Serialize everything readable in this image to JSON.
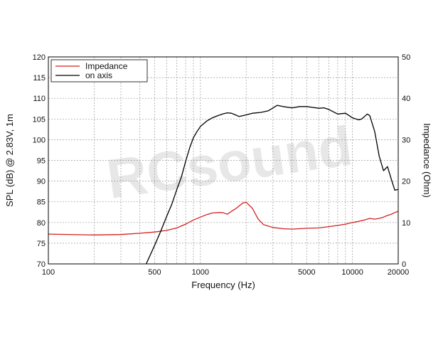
{
  "chart_data": {
    "type": "line",
    "xlabel": "Frequency (Hz)",
    "ylabel": "SPL (dB) @ 2.83V, 1m",
    "y2label": "Impedance (Ohm)",
    "x_scale": "log",
    "xlim": [
      100,
      20000
    ],
    "ylim": [
      70,
      120
    ],
    "y2lim": [
      0,
      50
    ],
    "grid": true,
    "legend_position": "top-left",
    "x_ticks": [
      {
        "value": 100,
        "label": "100"
      },
      {
        "value": 500,
        "label": "500"
      },
      {
        "value": 1000,
        "label": "1000"
      },
      {
        "value": 5000,
        "label": "5000"
      },
      {
        "value": 10000,
        "label": "10000"
      },
      {
        "value": 20000,
        "label": "20000"
      }
    ],
    "y_ticks": [
      "70",
      "75",
      "80",
      "85",
      "90",
      "95",
      "100",
      "105",
      "110",
      "115",
      "120"
    ],
    "y2_ticks": [
      "0",
      "10",
      "20",
      "30",
      "40",
      "50"
    ],
    "watermark": "RCsound",
    "series": [
      {
        "name": "Impedance",
        "color": "#d42020",
        "axis": "right",
        "x": [
          100,
          200,
          300,
          400,
          500,
          600,
          700,
          800,
          900,
          1000,
          1100,
          1200,
          1300,
          1400,
          1500,
          1600,
          1700,
          1800,
          1900,
          2000,
          2200,
          2400,
          2600,
          3000,
          3500,
          4000,
          5000,
          6000,
          7000,
          8000,
          9000,
          10000,
          11000,
          12000,
          13000,
          14000,
          15000,
          16000,
          17000,
          18000,
          19000,
          20000
        ],
        "values": [
          7.2,
          7.0,
          7.1,
          7.4,
          7.7,
          8.1,
          8.7,
          9.6,
          10.6,
          11.3,
          11.9,
          12.3,
          12.4,
          12.4,
          12.0,
          12.7,
          13.3,
          14.0,
          14.7,
          14.9,
          13.4,
          10.8,
          9.5,
          8.8,
          8.5,
          8.4,
          8.6,
          8.7,
          9.0,
          9.3,
          9.6,
          10.0,
          10.3,
          10.6,
          11.0,
          10.8,
          11.0,
          11.3,
          11.7,
          12.0,
          12.4,
          12.7
        ]
      },
      {
        "name": "on axis",
        "color": "#000000",
        "axis": "left",
        "x": [
          440,
          500,
          550,
          600,
          650,
          700,
          750,
          800,
          850,
          900,
          950,
          1000,
          1100,
          1200,
          1300,
          1400,
          1500,
          1600,
          1700,
          1800,
          2000,
          2200,
          2500,
          2800,
          3200,
          3500,
          4000,
          4500,
          5000,
          5500,
          6000,
          6500,
          7000,
          8000,
          9000,
          10000,
          11000,
          11500,
          12000,
          12500,
          13000,
          14000,
          15000,
          16000,
          17000,
          18000,
          19000,
          20000
        ],
        "values": [
          70,
          74.5,
          78,
          81.5,
          84.5,
          88,
          91,
          94.8,
          98,
          100.5,
          102,
          103.2,
          104.5,
          105.3,
          105.8,
          106.2,
          106.5,
          106.4,
          106.0,
          105.6,
          106.0,
          106.4,
          106.6,
          107.0,
          108.3,
          108.0,
          107.7,
          108.0,
          108.0,
          107.8,
          107.6,
          107.7,
          107.3,
          106.2,
          106.4,
          105.3,
          104.8,
          105.0,
          105.6,
          106.2,
          105.8,
          102.0,
          96.0,
          92.5,
          93.5,
          90.5,
          87.8,
          88.0
        ]
      }
    ]
  }
}
